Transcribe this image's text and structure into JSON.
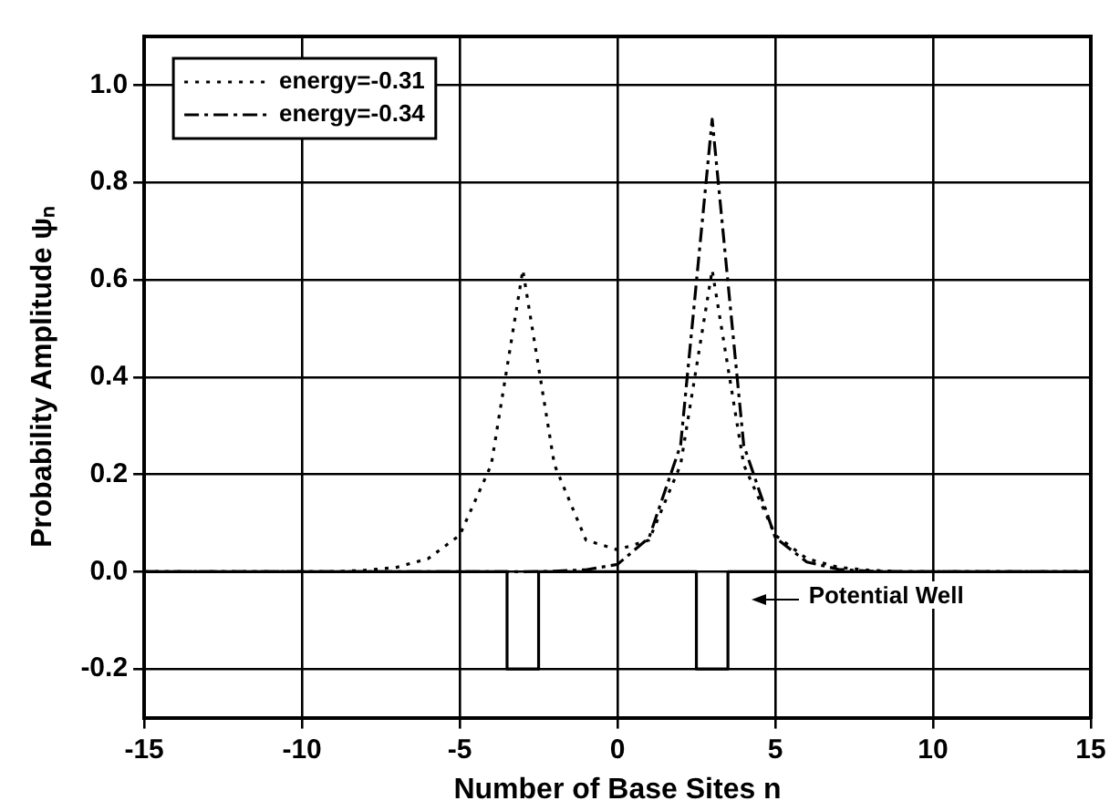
{
  "chart_data": {
    "type": "line",
    "xlabel": "Number of Base Sites n",
    "ylabel": "Probability Amplitude ψₙ",
    "x": [
      -15,
      -14,
      -13,
      -12,
      -11,
      -10,
      -9,
      -8,
      -7,
      -6,
      -5,
      -4,
      -3,
      -2,
      -1,
      0,
      1,
      2,
      3,
      4,
      5,
      6,
      7,
      8,
      9,
      10,
      11,
      12,
      13,
      14,
      15
    ],
    "series": [
      {
        "name": "energy=-0.31",
        "color": "#000000",
        "line_style": "dotted",
        "values": [
          0,
          0,
          0,
          0,
          0,
          0,
          0,
          0.003,
          0.009,
          0.027,
          0.075,
          0.22,
          0.62,
          0.22,
          0.065,
          0.045,
          0.065,
          0.22,
          0.62,
          0.22,
          0.075,
          0.027,
          0.009,
          0.003,
          0,
          0,
          0,
          0,
          0,
          0,
          0
        ]
      },
      {
        "name": "energy=-0.34",
        "color": "#000000",
        "line_style": "dashed",
        "values": [
          0,
          0,
          0,
          0,
          0,
          0,
          0,
          0,
          0,
          0,
          0,
          0,
          0,
          0.001,
          0.004,
          0.015,
          0.07,
          0.26,
          0.93,
          0.26,
          0.07,
          0.02,
          0.005,
          0.001,
          0,
          0,
          0,
          0,
          0,
          0,
          0
        ]
      },
      {
        "color": "#000000",
        "line_style": "solid",
        "x": [
          -15,
          -3.5,
          -3.5,
          -2.5,
          -2.5,
          2.5,
          2.5,
          3.5,
          3.5,
          15
        ],
        "values": [
          0,
          0,
          -0.2,
          -0.2,
          0,
          0,
          -0.2,
          -0.2,
          0,
          0
        ]
      }
    ],
    "xlim": [
      -15,
      15
    ],
    "xticks": [
      -15,
      -10,
      -5,
      0,
      5,
      10,
      15
    ],
    "ylim": [
      -0.3,
      1.1
    ],
    "yticks": [
      -0.2,
      {
        "value": 0,
        "label": "0.0"
      },
      0.2,
      0.4,
      0.6,
      0.8,
      {
        "value": 1,
        "label": "1.0"
      }
    ],
    "annotations": [
      "Potential Well"
    ],
    "grid": true,
    "legend": "top left",
    "marker": "none"
  }
}
